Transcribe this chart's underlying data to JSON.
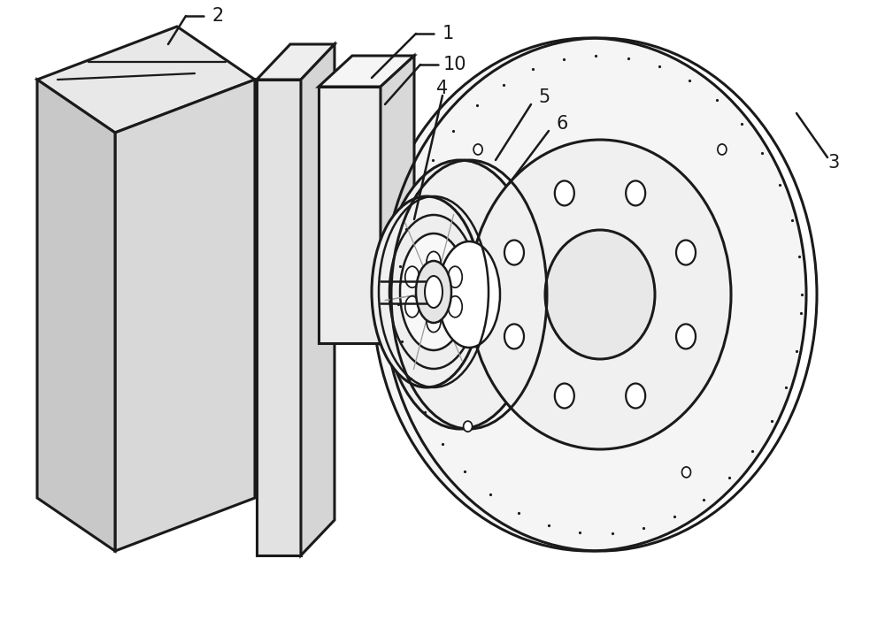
{
  "background_color": "#ffffff",
  "line_color": "#1a1a1a",
  "lw": 1.8,
  "tlw": 2.2,
  "fig_width": 10.0,
  "fig_height": 7.18,
  "label_fontsize": 15
}
